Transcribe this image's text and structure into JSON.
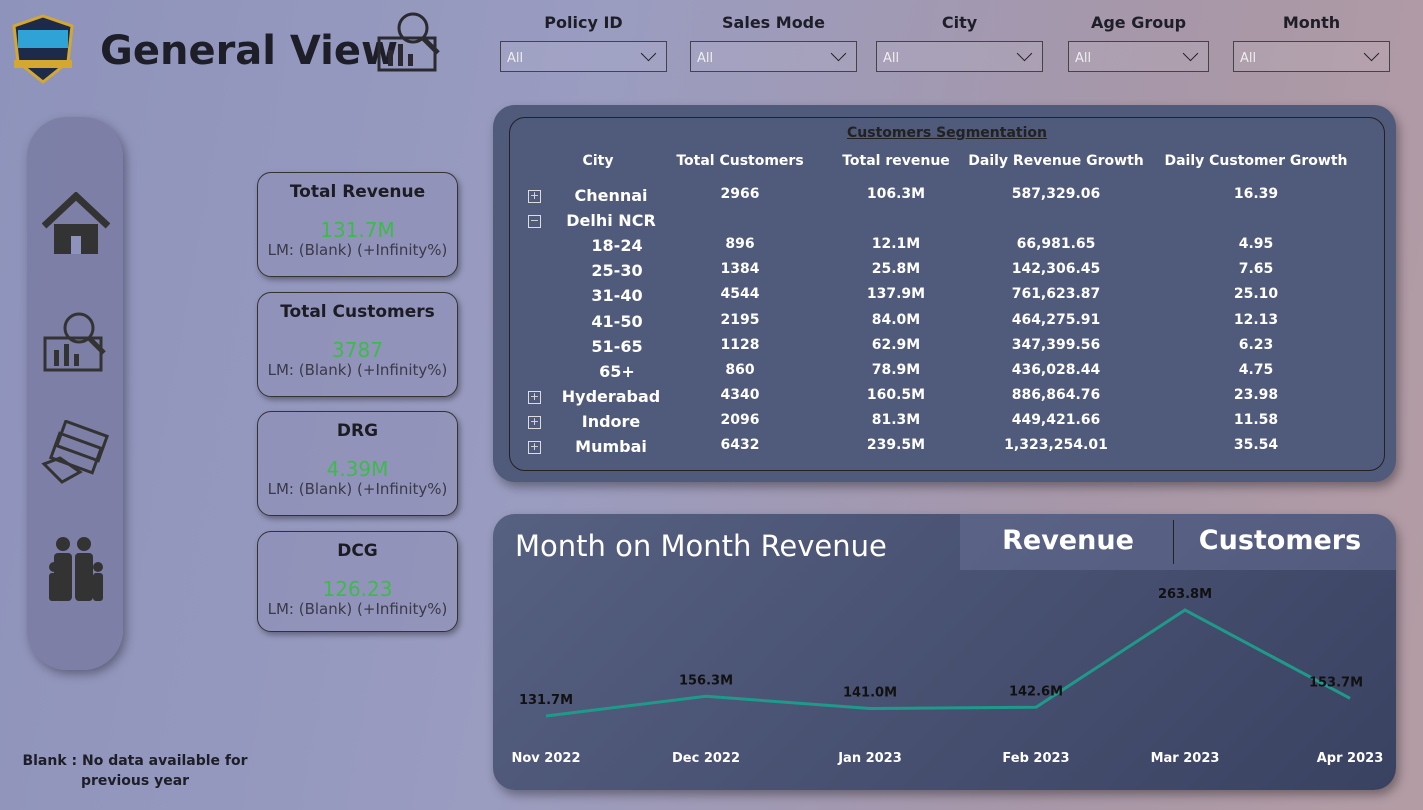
{
  "header": {
    "title": "General View"
  },
  "filters": [
    {
      "label": "Policy ID",
      "value": "All"
    },
    {
      "label": "Sales Mode",
      "value": "All"
    },
    {
      "label": "City",
      "value": "All"
    },
    {
      "label": "Age Group",
      "value": "All"
    },
    {
      "label": "Month",
      "value": "All"
    }
  ],
  "kpis": [
    {
      "title": "Total Revenue",
      "value": "131.7M",
      "comparison": "LM: (Blank) (+Infinity%)"
    },
    {
      "title": "Total Customers",
      "value": "3787",
      "comparison": "LM: (Blank) (+Infinity%)"
    },
    {
      "title": "DRG",
      "value": "4.39M",
      "comparison": "LM: (Blank) (+Infinity%)"
    },
    {
      "title": "DCG",
      "value": "126.23",
      "comparison": "LM: (Blank) (+Infinity%)"
    }
  ],
  "footnote": "Blank : No data available for previous year",
  "table": {
    "title": "Customers Segmentation",
    "columns": [
      "City",
      "Total Customers",
      "Total revenue",
      "Daily Revenue Growth",
      "Daily Customer Growth"
    ],
    "rows": [
      {
        "city": "Chennai",
        "values": [
          "2966",
          "106.3M",
          "587,329.06",
          "16.39"
        ]
      },
      {
        "city": "Delhi NCR",
        "children": [
          {
            "city": "18-24",
            "values": [
              "896",
              "12.1M",
              "66,981.65",
              "4.95"
            ]
          },
          {
            "city": "25-30",
            "values": [
              "1384",
              "25.8M",
              "142,306.45",
              "7.65"
            ]
          },
          {
            "city": "31-40",
            "values": [
              "4544",
              "137.9M",
              "761,623.87",
              "25.10"
            ]
          },
          {
            "city": "41-50",
            "values": [
              "2195",
              "84.0M",
              "464,275.91",
              "12.13"
            ]
          },
          {
            "city": "51-65",
            "values": [
              "1128",
              "62.9M",
              "347,399.56",
              "6.23"
            ]
          },
          {
            "city": "65+",
            "values": [
              "860",
              "78.9M",
              "436,028.44",
              "4.75"
            ]
          }
        ]
      },
      {
        "city": "Hyderabad",
        "values": [
          "4340",
          "160.5M",
          "886,864.76",
          "23.98"
        ]
      },
      {
        "city": "Indore",
        "values": [
          "2096",
          "81.3M",
          "449,421.66",
          "11.58"
        ]
      },
      {
        "city": "Mumbai",
        "values": [
          "6432",
          "239.5M",
          "1,323,254.01",
          "35.54"
        ]
      }
    ]
  },
  "chart_tabs": [
    "Revenue",
    "Customers"
  ],
  "chart_data": {
    "type": "line",
    "title": "Month on Month Revenue",
    "categories": [
      "Nov 2022",
      "Dec 2022",
      "Jan 2023",
      "Feb 2023",
      "Mar 2023",
      "Apr 2023"
    ],
    "values": [
      131.7,
      156.3,
      141.0,
      142.6,
      263.8,
      153.7
    ],
    "value_labels": [
      "131.7M",
      "156.3M",
      "141.0M",
      "142.6M",
      "263.8M",
      "153.7M"
    ],
    "color": "#1f9a8a"
  }
}
